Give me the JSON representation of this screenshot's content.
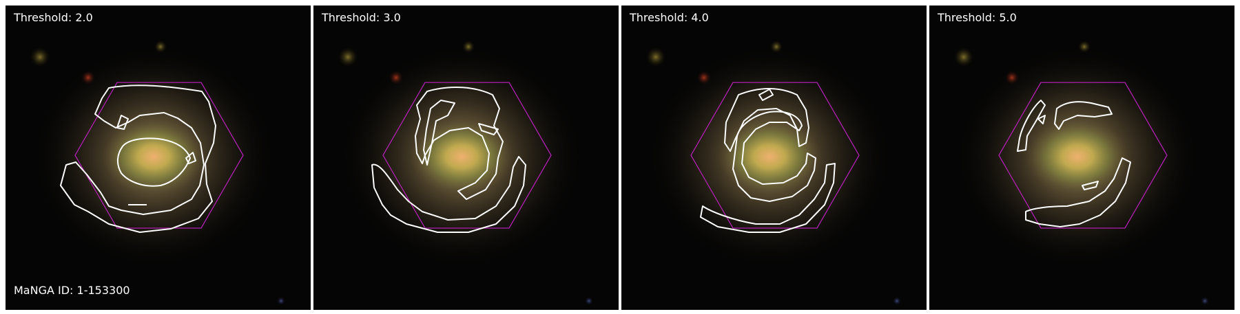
{
  "figure": {
    "panels": [
      {
        "threshold_label": "Threshold: 2.0"
      },
      {
        "threshold_label": "Threshold: 3.0"
      },
      {
        "threshold_label": "Threshold: 4.0"
      },
      {
        "threshold_label": "Threshold: 5.0"
      }
    ],
    "manga_id_label": "MaNGA ID: 1-153300"
  },
  "colors": {
    "background": "#050505",
    "contour": "#ffffff",
    "hexagon": "#b020b0",
    "label_text": "#ffffff"
  }
}
